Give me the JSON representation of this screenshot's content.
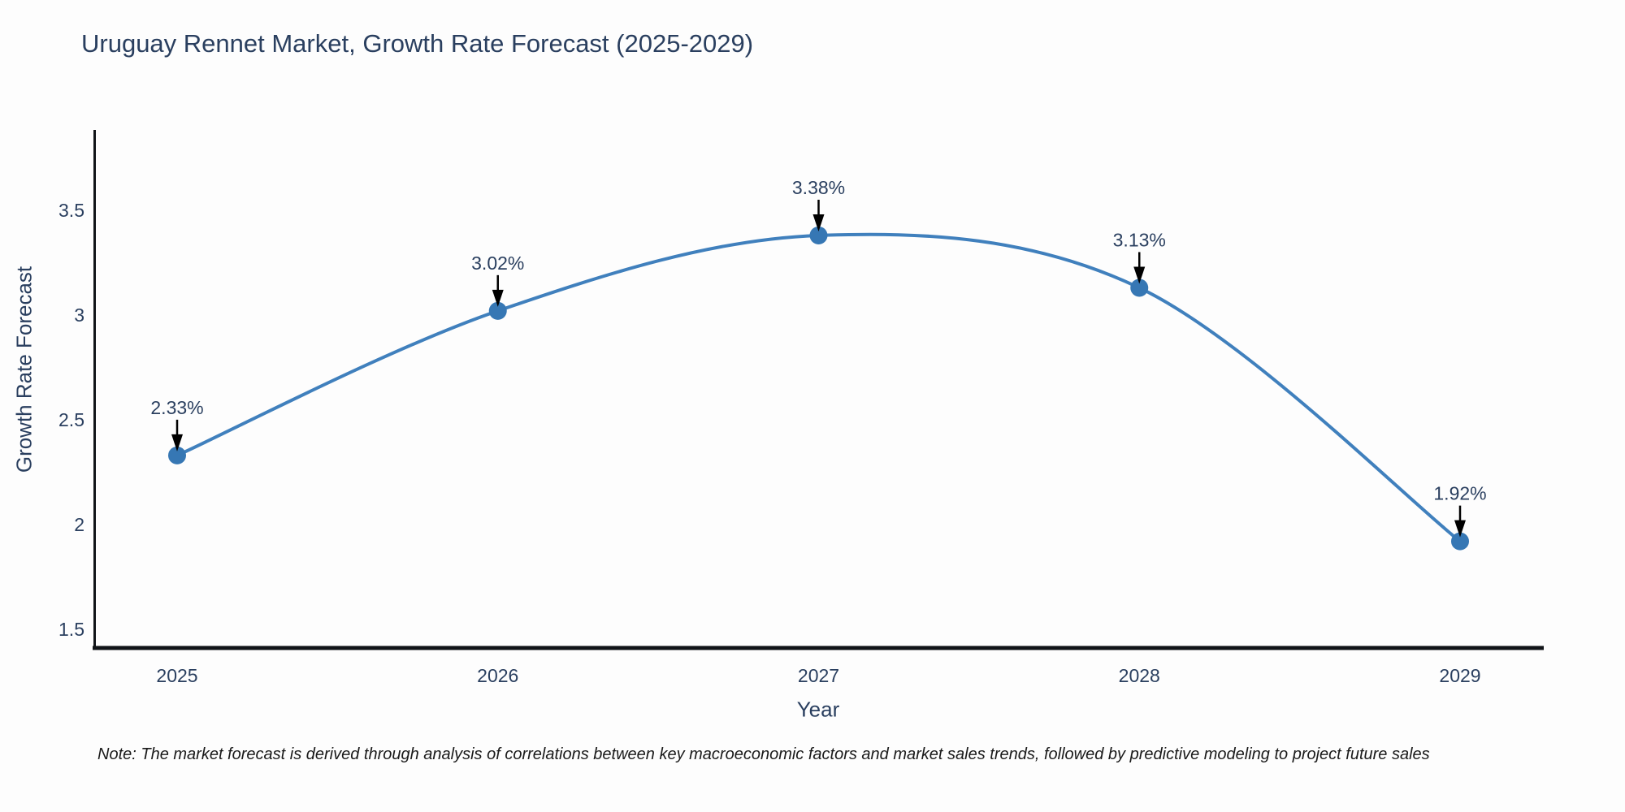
{
  "title": "Uruguay Rennet Market, Growth Rate Forecast (2025-2029)",
  "note": "Note: The market forecast is derived through analysis of correlations between key macroeconomic factors and market sales trends, followed by predictive modeling to project future sales",
  "chart_data": {
    "type": "line",
    "line_shape": "spline",
    "title": "Uruguay Rennet Market, Growth Rate Forecast (2025-2029)",
    "xlabel": "Year",
    "ylabel": "Growth Rate Forecast",
    "x": [
      2025,
      2026,
      2027,
      2028,
      2029
    ],
    "series": [
      {
        "name": "Growth Rate Forecast",
        "values": [
          2.33,
          3.02,
          3.38,
          3.13,
          1.92
        ]
      }
    ],
    "point_labels": [
      "2.33%",
      "3.02%",
      "3.38%",
      "3.13%",
      "1.92%"
    ],
    "xtick_labels": [
      "2025",
      "2026",
      "2027",
      "2028",
      "2029"
    ],
    "yticks": [
      1.5,
      2,
      2.5,
      3,
      3.5
    ],
    "ytick_labels": [
      "1.5",
      "2",
      "2.5",
      "3",
      "3.5"
    ],
    "ylim": [
      1.41,
      3.88
    ],
    "grid": false,
    "legend": "none",
    "colors": {
      "line": "#4080bd",
      "marker": "#3677b4",
      "annotation_text": "#2a3f5f",
      "arrow": "#000000",
      "axis_line": "#111418",
      "tick_text": "#2a3f5f",
      "title_text": "#2a3f5f"
    }
  }
}
